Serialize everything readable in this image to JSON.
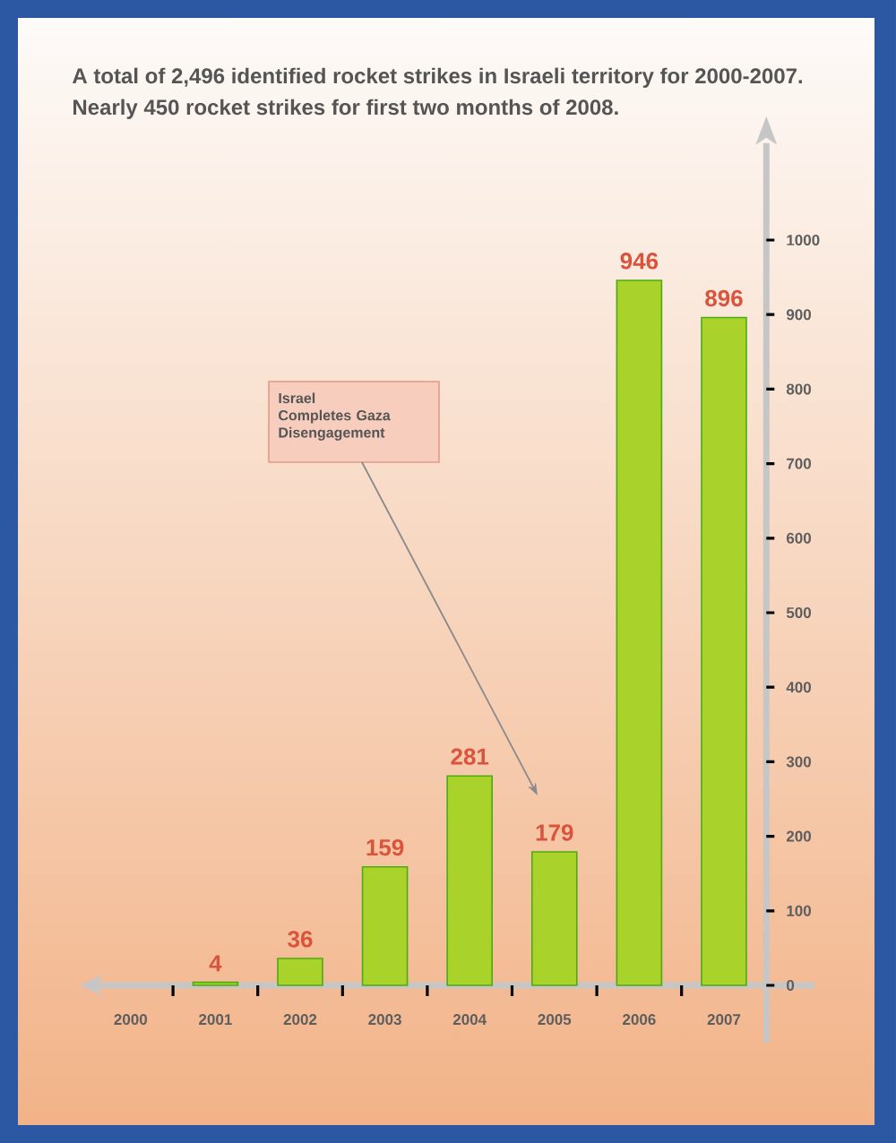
{
  "chart_data": {
    "type": "bar",
    "title": "A total of 2,496 identified rocket strikes in Israeli territory for 2000-2007.",
    "subtitle": "Nearly 450 rocket strikes for first two months of 2008.",
    "categories": [
      "2000",
      "2001",
      "2002",
      "2003",
      "2004",
      "2005",
      "2006",
      "2007"
    ],
    "values": [
      null,
      4,
      36,
      159,
      281,
      179,
      946,
      896
    ],
    "color": "#a9d32b",
    "data_labels": true,
    "ylim": [
      0,
      1130
    ],
    "yticks": [
      0,
      100,
      200,
      300,
      400,
      500,
      600,
      700,
      800,
      900,
      1000
    ],
    "annotations": [
      "Israel Completes Gaza Disengagement"
    ]
  }
}
